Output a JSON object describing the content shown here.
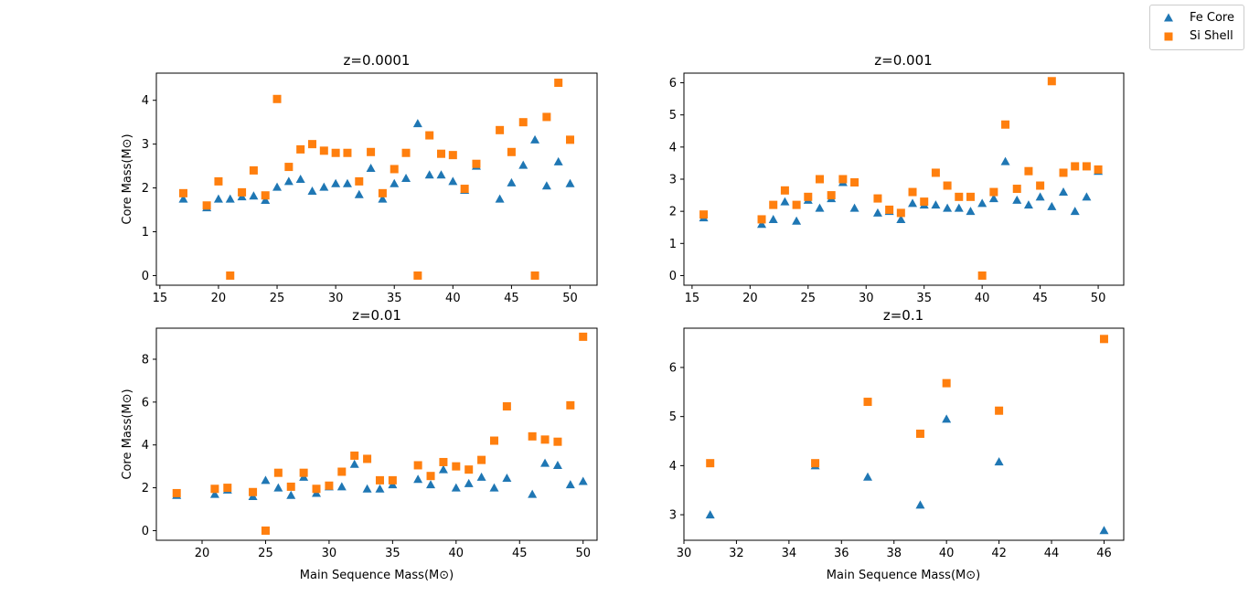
{
  "colors": {
    "fe": "#1f77b4",
    "si": "#ff7f0e"
  },
  "legend": {
    "fe_label": "Fe Core",
    "si_label": "Si Shell"
  },
  "chart_data": [
    {
      "type": "scatter",
      "title": "z=0.0001",
      "xlabel": "",
      "ylabel": "Core Mass(M⊙)",
      "xlim": [
        14.7,
        52.3
      ],
      "ylim": [
        -0.22,
        4.62
      ],
      "xticks": [
        15,
        20,
        25,
        30,
        35,
        40,
        45,
        50
      ],
      "yticks": [
        0,
        1,
        2,
        3,
        4
      ],
      "series": [
        {
          "name": "Fe Core",
          "x": [
            17,
            19,
            20,
            21,
            22,
            23,
            24,
            25,
            26,
            27,
            28,
            29,
            30,
            31,
            32,
            33,
            34,
            35,
            36,
            37,
            38,
            39,
            40,
            41,
            42,
            44,
            45,
            46,
            47,
            48,
            49,
            50
          ],
          "y": [
            1.75,
            1.55,
            1.75,
            1.75,
            1.8,
            1.82,
            1.72,
            2.02,
            2.15,
            2.2,
            1.93,
            2.02,
            2.1,
            2.1,
            1.85,
            2.45,
            1.75,
            2.1,
            2.22,
            3.47,
            2.3,
            2.3,
            2.15,
            1.95,
            2.5,
            1.75,
            2.12,
            2.52,
            3.1,
            2.05,
            2.6,
            2.1
          ]
        },
        {
          "name": "Si Shell",
          "x": [
            17,
            19,
            20,
            21,
            22,
            23,
            24,
            25,
            26,
            27,
            28,
            29,
            30,
            31,
            32,
            33,
            34,
            35,
            36,
            37,
            38,
            39,
            40,
            41,
            42,
            44,
            45,
            46,
            47,
            48,
            49,
            50
          ],
          "y": [
            1.88,
            1.6,
            2.15,
            0,
            1.9,
            2.4,
            1.83,
            4.03,
            2.48,
            2.88,
            3.0,
            2.85,
            2.8,
            2.8,
            2.15,
            2.82,
            1.88,
            2.43,
            2.8,
            0,
            3.2,
            2.78,
            2.75,
            1.98,
            2.55,
            3.32,
            2.82,
            3.5,
            0,
            3.62,
            4.4,
            3.1
          ]
        }
      ]
    },
    {
      "type": "scatter",
      "title": "z=0.001",
      "xlabel": "",
      "ylabel": "",
      "xlim": [
        14.3,
        52.2
      ],
      "ylim": [
        -0.3,
        6.3
      ],
      "xticks": [
        15,
        20,
        25,
        30,
        35,
        40,
        45,
        50
      ],
      "yticks": [
        0,
        1,
        2,
        3,
        4,
        5,
        6
      ],
      "series": [
        {
          "name": "Fe Core",
          "x": [
            16,
            21,
            22,
            23,
            24,
            25,
            26,
            27,
            28,
            29,
            31,
            32,
            33,
            34,
            35,
            36,
            37,
            38,
            39,
            40,
            41,
            42,
            43,
            44,
            45,
            46,
            47,
            48,
            49,
            50
          ],
          "y": [
            1.8,
            1.6,
            1.75,
            2.3,
            1.7,
            2.35,
            2.1,
            2.4,
            2.9,
            2.1,
            1.95,
            2.0,
            1.75,
            2.25,
            2.2,
            2.2,
            2.1,
            2.1,
            2.0,
            2.25,
            2.4,
            3.55,
            2.35,
            2.2,
            2.45,
            2.15,
            2.6,
            2.0,
            2.45,
            3.25
          ]
        },
        {
          "name": "Si Shell",
          "x": [
            16,
            21,
            22,
            23,
            24,
            25,
            26,
            27,
            28,
            29,
            31,
            32,
            33,
            34,
            35,
            36,
            37,
            38,
            39,
            40,
            41,
            42,
            43,
            44,
            45,
            46,
            47,
            48,
            49,
            50
          ],
          "y": [
            1.9,
            1.75,
            2.2,
            2.65,
            2.2,
            2.45,
            3.0,
            2.5,
            3.0,
            2.9,
            2.4,
            2.05,
            1.95,
            2.6,
            2.3,
            3.2,
            2.8,
            2.45,
            2.45,
            0,
            2.6,
            4.7,
            2.7,
            3.25,
            2.8,
            6.05,
            3.2,
            3.4,
            3.4,
            3.3
          ]
        }
      ]
    },
    {
      "type": "scatter",
      "title": "z=0.01",
      "xlabel": "Main Sequence Mass(M⊙)",
      "ylabel": "Core Mass(M⊙)",
      "xlim": [
        16.4,
        51.1
      ],
      "ylim": [
        -0.45,
        9.45
      ],
      "xticks": [
        20,
        25,
        30,
        35,
        40,
        45,
        50
      ],
      "yticks": [
        0,
        2,
        4,
        6,
        8
      ],
      "series": [
        {
          "name": "Fe Core",
          "x": [
            18,
            21,
            22,
            24,
            25,
            26,
            27,
            28,
            29,
            30,
            31,
            32,
            33,
            34,
            35,
            37,
            38,
            39,
            40,
            41,
            42,
            43,
            44,
            46,
            47,
            48,
            49,
            50
          ],
          "y": [
            1.65,
            1.7,
            1.9,
            1.6,
            2.35,
            2.0,
            1.65,
            2.5,
            1.75,
            2.05,
            2.05,
            3.1,
            1.95,
            1.95,
            2.15,
            2.4,
            2.15,
            2.85,
            2.0,
            2.2,
            2.5,
            2.0,
            2.45,
            1.7,
            3.15,
            3.05,
            2.15,
            2.3
          ]
        },
        {
          "name": "Si Shell",
          "x": [
            18,
            21,
            22,
            24,
            25,
            26,
            27,
            28,
            29,
            30,
            31,
            32,
            33,
            34,
            35,
            37,
            38,
            39,
            40,
            41,
            42,
            43,
            44,
            46,
            47,
            48,
            49,
            50
          ],
          "y": [
            1.75,
            1.95,
            2.0,
            1.8,
            0,
            2.7,
            2.05,
            2.7,
            1.95,
            2.1,
            2.75,
            3.5,
            3.35,
            2.35,
            2.35,
            3.05,
            2.55,
            3.2,
            3.0,
            2.85,
            3.3,
            4.2,
            5.8,
            4.4,
            4.25,
            4.15,
            5.85,
            9.05
          ]
        }
      ]
    },
    {
      "type": "scatter",
      "title": "z=0.1",
      "xlabel": "Main Sequence Mass(M⊙)",
      "ylabel": "",
      "xlim": [
        30.0,
        46.75
      ],
      "ylim": [
        2.48,
        6.8
      ],
      "xticks": [
        30,
        32,
        34,
        36,
        38,
        40,
        42,
        44,
        46
      ],
      "yticks": [
        3,
        4,
        5,
        6
      ],
      "series": [
        {
          "name": "Fe Core",
          "x": [
            31,
            35,
            37,
            39,
            40,
            42,
            46
          ],
          "y": [
            3.0,
            4.0,
            3.77,
            3.2,
            4.95,
            4.08,
            2.68
          ]
        },
        {
          "name": "Si Shell",
          "x": [
            31,
            35,
            37,
            39,
            40,
            42,
            46
          ],
          "y": [
            4.05,
            4.05,
            5.3,
            4.65,
            5.68,
            5.12,
            6.58
          ]
        }
      ]
    }
  ]
}
